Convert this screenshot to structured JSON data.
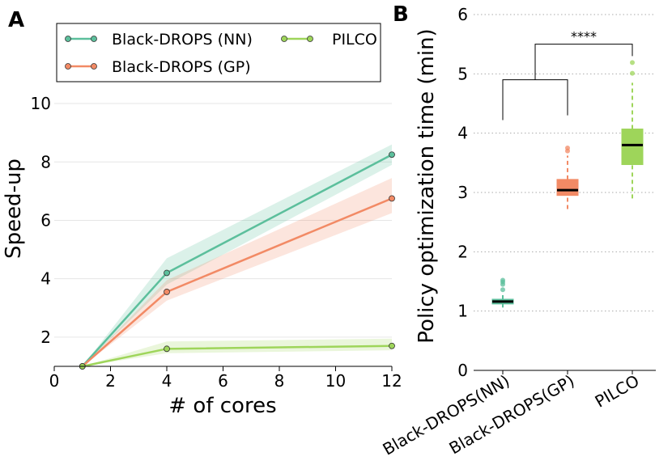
{
  "chart_data": [
    {
      "panel": "A",
      "type": "line",
      "xlabel": "# of cores",
      "ylabel": "Speed-up",
      "xlim": [
        0,
        12
      ],
      "ylim": [
        1,
        10.5
      ],
      "xticks": [
        0,
        2,
        4,
        6,
        8,
        10,
        12
      ],
      "yticks": [
        2,
        4,
        6,
        8,
        10
      ],
      "grid": "horizontal",
      "legend_position": "top",
      "series": [
        {
          "name": "Black-DROPS (NN)",
          "color": "#5cbf9c",
          "x": [
            1,
            4,
            12
          ],
          "y": [
            1.0,
            4.2,
            8.25
          ],
          "band_low": [
            1.0,
            3.8,
            7.9
          ],
          "band_high": [
            1.0,
            4.7,
            8.6
          ]
        },
        {
          "name": "Black-DROPS (GP)",
          "color": "#f28a65",
          "x": [
            1,
            4,
            12
          ],
          "y": [
            1.0,
            3.55,
            6.75
          ],
          "band_low": [
            1.0,
            3.25,
            6.25
          ],
          "band_high": [
            1.0,
            3.95,
            7.45
          ]
        },
        {
          "name": "PILCO",
          "color": "#9ed55a",
          "x": [
            1,
            4,
            12
          ],
          "y": [
            1.0,
            1.6,
            1.7
          ],
          "band_low": [
            1.0,
            1.45,
            1.55
          ],
          "band_high": [
            1.0,
            1.85,
            1.95
          ]
        }
      ]
    },
    {
      "panel": "B",
      "type": "box",
      "ylabel": "Policy optimization time (min)",
      "ylim": [
        0,
        6
      ],
      "yticks": [
        0,
        1,
        2,
        3,
        4,
        5,
        6
      ],
      "grid": "horizontal",
      "categories": [
        "Black-DROPS(NN)",
        "Black-DROPS(GP)",
        "PILCO"
      ],
      "boxes": [
        {
          "name": "Black-DROPS(NN)",
          "color": "#5cbf9c",
          "q1": 1.12,
          "median": 1.16,
          "q3": 1.2,
          "whisker_low": 1.06,
          "whisker_high": 1.3,
          "outliers": [
            1.36,
            1.45,
            1.49,
            1.52
          ]
        },
        {
          "name": "Black-DROPS(GP)",
          "color": "#f28a65",
          "q1": 2.95,
          "median": 3.04,
          "q3": 3.22,
          "whisker_low": 2.72,
          "whisker_high": 3.62,
          "outliers": [
            3.7,
            3.75
          ]
        },
        {
          "name": "PILCO",
          "color": "#9ed55a",
          "q1": 3.47,
          "median": 3.8,
          "q3": 4.07,
          "whisker_low": 2.9,
          "whisker_high": 4.85,
          "outliers": [
            5.01,
            5.19
          ]
        }
      ],
      "significance": "****"
    }
  ]
}
